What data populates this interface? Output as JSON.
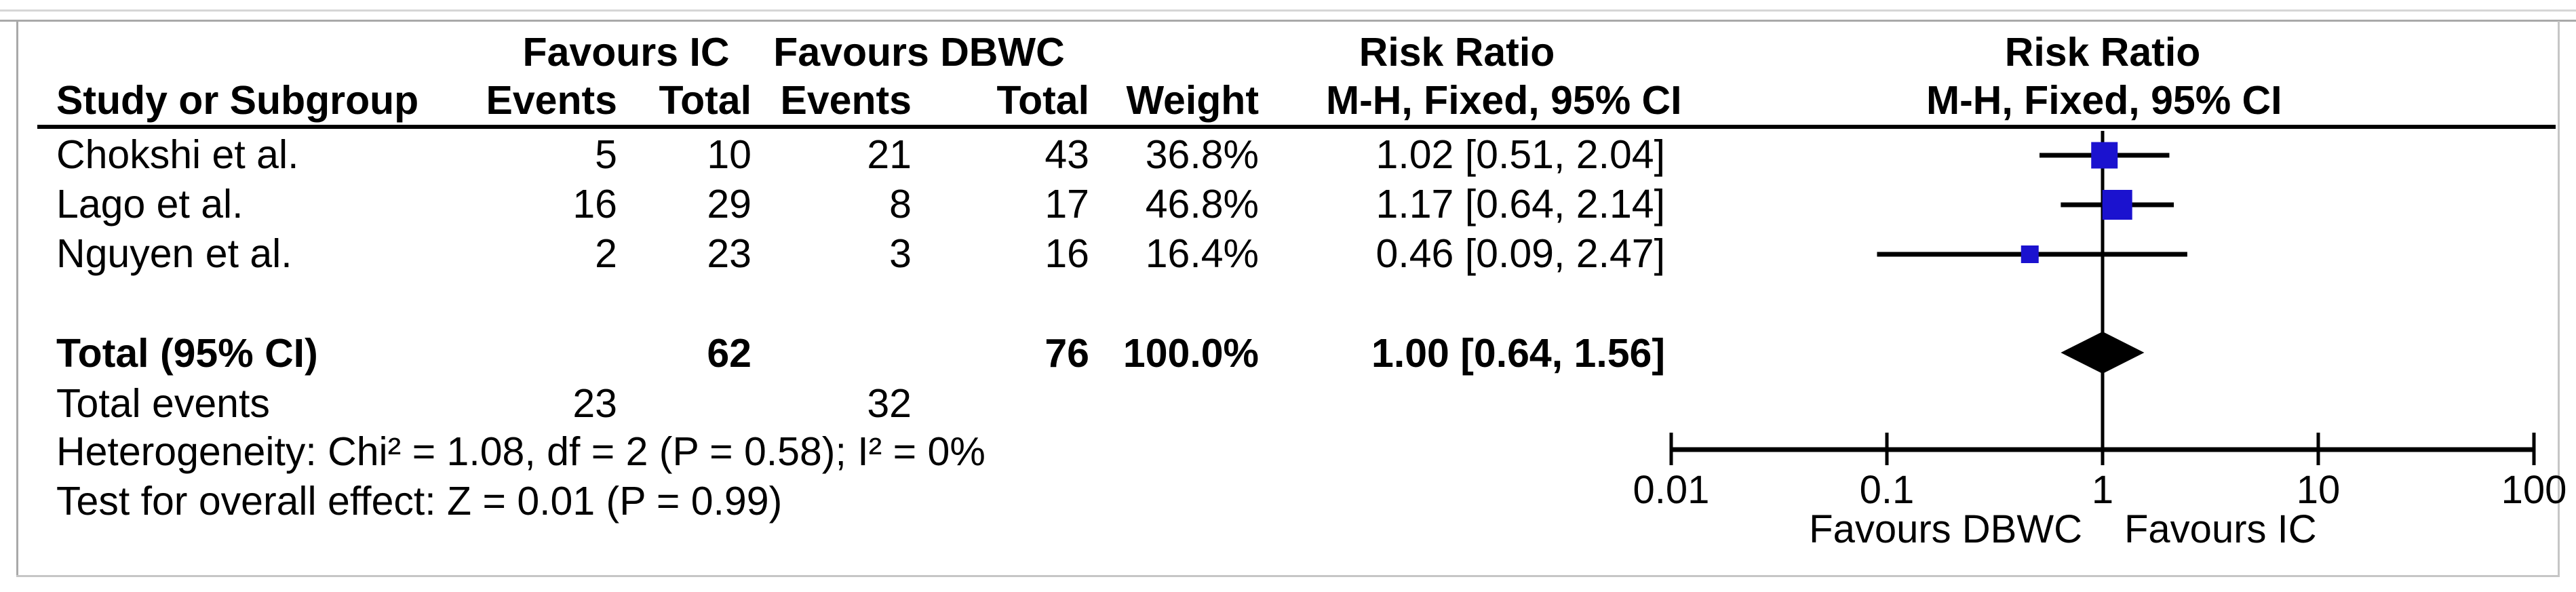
{
  "accent_colors": {
    "marker_blue": "#1b12cf",
    "diamond_black": "#000000",
    "frame_gray_light": "#d6d6d6",
    "frame_gray": "#a9a9a9",
    "frame_gray_soft": "#c6c6c6"
  },
  "table": {
    "group1_header": "Favours IC",
    "group2_header": "Favours DBWC",
    "effect_header": "Risk Ratio",
    "effect_subheader": "M-H, Fixed, 95% CI",
    "plot_header": "Risk Ratio",
    "plot_subheader": "M-H, Fixed, 95% CI",
    "col_study": "Study or Subgroup",
    "col_events1": "Events",
    "col_total1": "Total",
    "col_events2": "Events",
    "col_total2": "Total",
    "col_weight": "Weight",
    "studies": [
      {
        "name": "Chokshi et al.",
        "e1": "5",
        "t1": "10",
        "e2": "21",
        "t2": "43",
        "weight": "36.8%",
        "ci": "1.02 [0.51, 2.04]"
      },
      {
        "name": "Lago et al.",
        "e1": "16",
        "t1": "29",
        "e2": "8",
        "t2": "17",
        "weight": "46.8%",
        "ci": "1.17 [0.64, 2.14]"
      },
      {
        "name": "Nguyen et al.",
        "e1": "2",
        "t1": "23",
        "e2": "3",
        "t2": "16",
        "weight": "16.4%",
        "ci": "0.46 [0.09, 2.47]"
      }
    ],
    "total": {
      "label": "Total (95% CI)",
      "t1": "62",
      "t2": "76",
      "weight": "100.0%",
      "ci": "1.00 [0.64, 1.56]"
    },
    "total_events": {
      "label": "Total events",
      "e1": "23",
      "e2": "32"
    },
    "heterogeneity": "Heterogeneity: Chi² = 1.08, df = 2 (P = 0.58); I² = 0%",
    "overall_effect": "Test for overall effect: Z = 0.01 (P = 0.99)"
  },
  "chart_data": {
    "type": "scatter",
    "subtype": "forest-plot",
    "effect_measure": "Risk Ratio",
    "method": "M-H, Fixed, 95% CI",
    "x_scale": "log10",
    "x_range": [
      0.01,
      100
    ],
    "x_ticks": [
      0.01,
      0.1,
      1,
      10,
      100
    ],
    "x_tick_labels": [
      "0.01",
      "0.1",
      "1",
      "10",
      "100"
    ],
    "null_line": 1,
    "x_label_left": "Favours DBWC",
    "x_label_right": "Favours IC",
    "studies": [
      {
        "name": "Chokshi et al.",
        "rr": 1.02,
        "ci_low": 0.51,
        "ci_high": 2.04,
        "weight_pct": 36.8
      },
      {
        "name": "Lago et al.",
        "rr": 1.17,
        "ci_low": 0.64,
        "ci_high": 2.14,
        "weight_pct": 46.8
      },
      {
        "name": "Nguyen et al.",
        "rr": 0.46,
        "ci_low": 0.09,
        "ci_high": 2.47,
        "weight_pct": 16.4
      }
    ],
    "total": {
      "rr": 1.0,
      "ci_low": 0.64,
      "ci_high": 1.56,
      "weight_pct": 100.0
    }
  }
}
